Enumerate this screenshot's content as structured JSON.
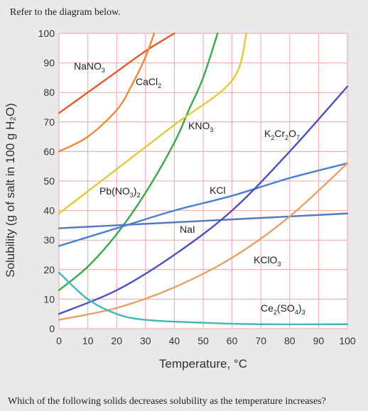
{
  "prompt": "Refer to the diagram below.",
  "question": "Which of the following solids decreases solubility as the temperature increases?",
  "chart_data": {
    "type": "line",
    "title": "",
    "xlabel": "Temperature, °C",
    "ylabel": "Solubility (g of salt in 100 g H₂O)",
    "xlim": [
      0,
      100
    ],
    "ylim": [
      0,
      100
    ],
    "xticks": [
      0,
      10,
      20,
      30,
      40,
      50,
      60,
      70,
      80,
      90,
      100
    ],
    "yticks": [
      0,
      10,
      20,
      30,
      40,
      50,
      60,
      70,
      80,
      90,
      100
    ],
    "grid": true,
    "series": [
      {
        "name": "NaNO₃",
        "color": "#e2572b",
        "x": [
          0,
          10,
          20,
          30,
          40
        ],
        "y": [
          73,
          80,
          87,
          94,
          100
        ]
      },
      {
        "name": "CaCl₂",
        "color": "#f08a3a",
        "x": [
          0,
          10,
          20,
          25,
          30,
          33
        ],
        "y": [
          60,
          65,
          74,
          82,
          92,
          100
        ]
      },
      {
        "name": "KNO₃",
        "color": "#3aa84a",
        "x": [
          0,
          10,
          20,
          30,
          40,
          45,
          50,
          55
        ],
        "y": [
          13,
          21,
          32,
          46,
          63,
          74,
          85,
          100
        ]
      },
      {
        "name": "Pb(NO₃)₂",
        "color": "#e0c93c",
        "x": [
          0,
          20,
          40,
          60,
          65
        ],
        "y": [
          39,
          54,
          69,
          84,
          100
        ]
      },
      {
        "name": "NaI",
        "color": "#5577bb",
        "x": [
          0,
          100
        ],
        "y": [
          34,
          39
        ]
      },
      {
        "name": "KCl",
        "color": "#4a7ed0",
        "x": [
          0,
          20,
          40,
          60,
          80,
          100
        ],
        "y": [
          28,
          34,
          40,
          45,
          51,
          56
        ]
      },
      {
        "name": "K₂Cr₂O₇",
        "color": "#4e4fc0",
        "x": [
          0,
          20,
          40,
          60,
          80,
          100
        ],
        "y": [
          5,
          13,
          25,
          40,
          60,
          82
        ]
      },
      {
        "name": "KClO₃",
        "color": "#e8a06a",
        "x": [
          0,
          20,
          40,
          60,
          80,
          100
        ],
        "y": [
          3,
          7,
          14,
          24,
          38,
          56
        ]
      },
      {
        "name": "Ce₂(SO₄)₃",
        "color": "#40b8b4",
        "x": [
          0,
          10,
          20,
          30,
          50,
          70,
          100
        ],
        "y": [
          19,
          10,
          5,
          3,
          2,
          1.5,
          1.5
        ]
      }
    ]
  },
  "labels": {
    "nano3": "NaNO",
    "nano3_sub": "3",
    "cacl2": "CaCl",
    "cacl2_sub": "2",
    "kno3": "KNO",
    "kno3_sub": "3",
    "pbno32_a": "Pb(NO",
    "pbno32_sub1": "3",
    "pbno32_b": ")",
    "pbno32_sub2": "2",
    "nai": "NaI",
    "kcl": "KCl",
    "k2cr2o7_a": "K",
    "k2cr2o7_sub1": "2",
    "k2cr2o7_b": "Cr",
    "k2cr2o7_sub2": "2",
    "k2cr2o7_c": "O",
    "k2cr2o7_sub3": "7",
    "kclo3": "KClO",
    "kclo3_sub": "3",
    "ce2so43_a": "Ce",
    "ce2so43_sub1": "2",
    "ce2so43_b": "(SO",
    "ce2so43_sub2": "4",
    "ce2so43_c": ")",
    "ce2so43_sub3": "3"
  }
}
